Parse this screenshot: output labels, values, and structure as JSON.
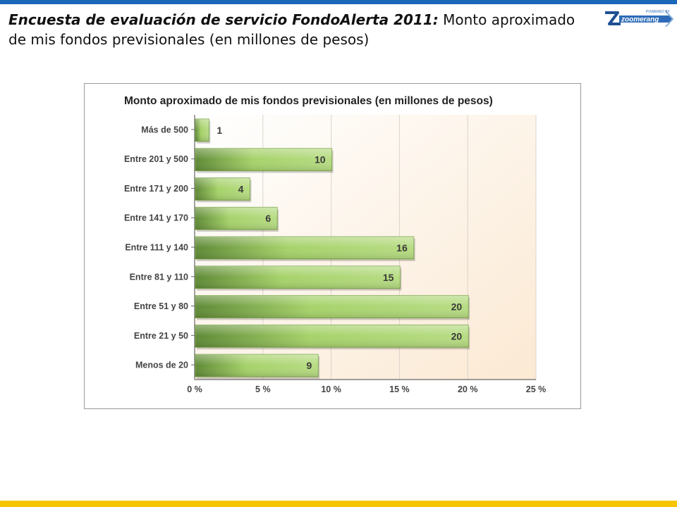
{
  "slide": {
    "title_lead": "Encuesta de evaluación de servicio FondoAlerta 2011:",
    "title_rest": " Monto aproximado de mis fondos previsionales (en millones de pesos)"
  },
  "logo": {
    "text": "zoomerang",
    "tagline": "POWERED BY",
    "icon": "zoomerang-logo-icon"
  },
  "colors": {
    "top_bar": "#1a66b8",
    "bottom_bar": "#f6c500",
    "bar_dark": "#5f8a36",
    "bar_light": "#a6d26a"
  },
  "chart_data": {
    "type": "bar",
    "orientation": "horizontal",
    "title": "Monto aproximado de mis fondos previsionales (en millones de pesos)",
    "categories": [
      "Más de 500",
      "Entre 201 y 500",
      "Entre 171 y 200",
      "Entre 141 y 170",
      "Entre 111 y 140",
      "Entre 81 y 110",
      "Entre 51 y 80",
      "Entre 21 y 50",
      "Menos de 20"
    ],
    "values": [
      1,
      10,
      4,
      6,
      16,
      15,
      20,
      20,
      9
    ],
    "value_labels": [
      "1",
      "10",
      "4",
      "6",
      "16",
      "15",
      "20",
      "20",
      "9"
    ],
    "xlim": [
      0,
      25
    ],
    "xticks": [
      "0 %",
      "5 %",
      "10 %",
      "15 %",
      "20 %",
      "25 %"
    ],
    "grid": true,
    "legend": "none"
  }
}
